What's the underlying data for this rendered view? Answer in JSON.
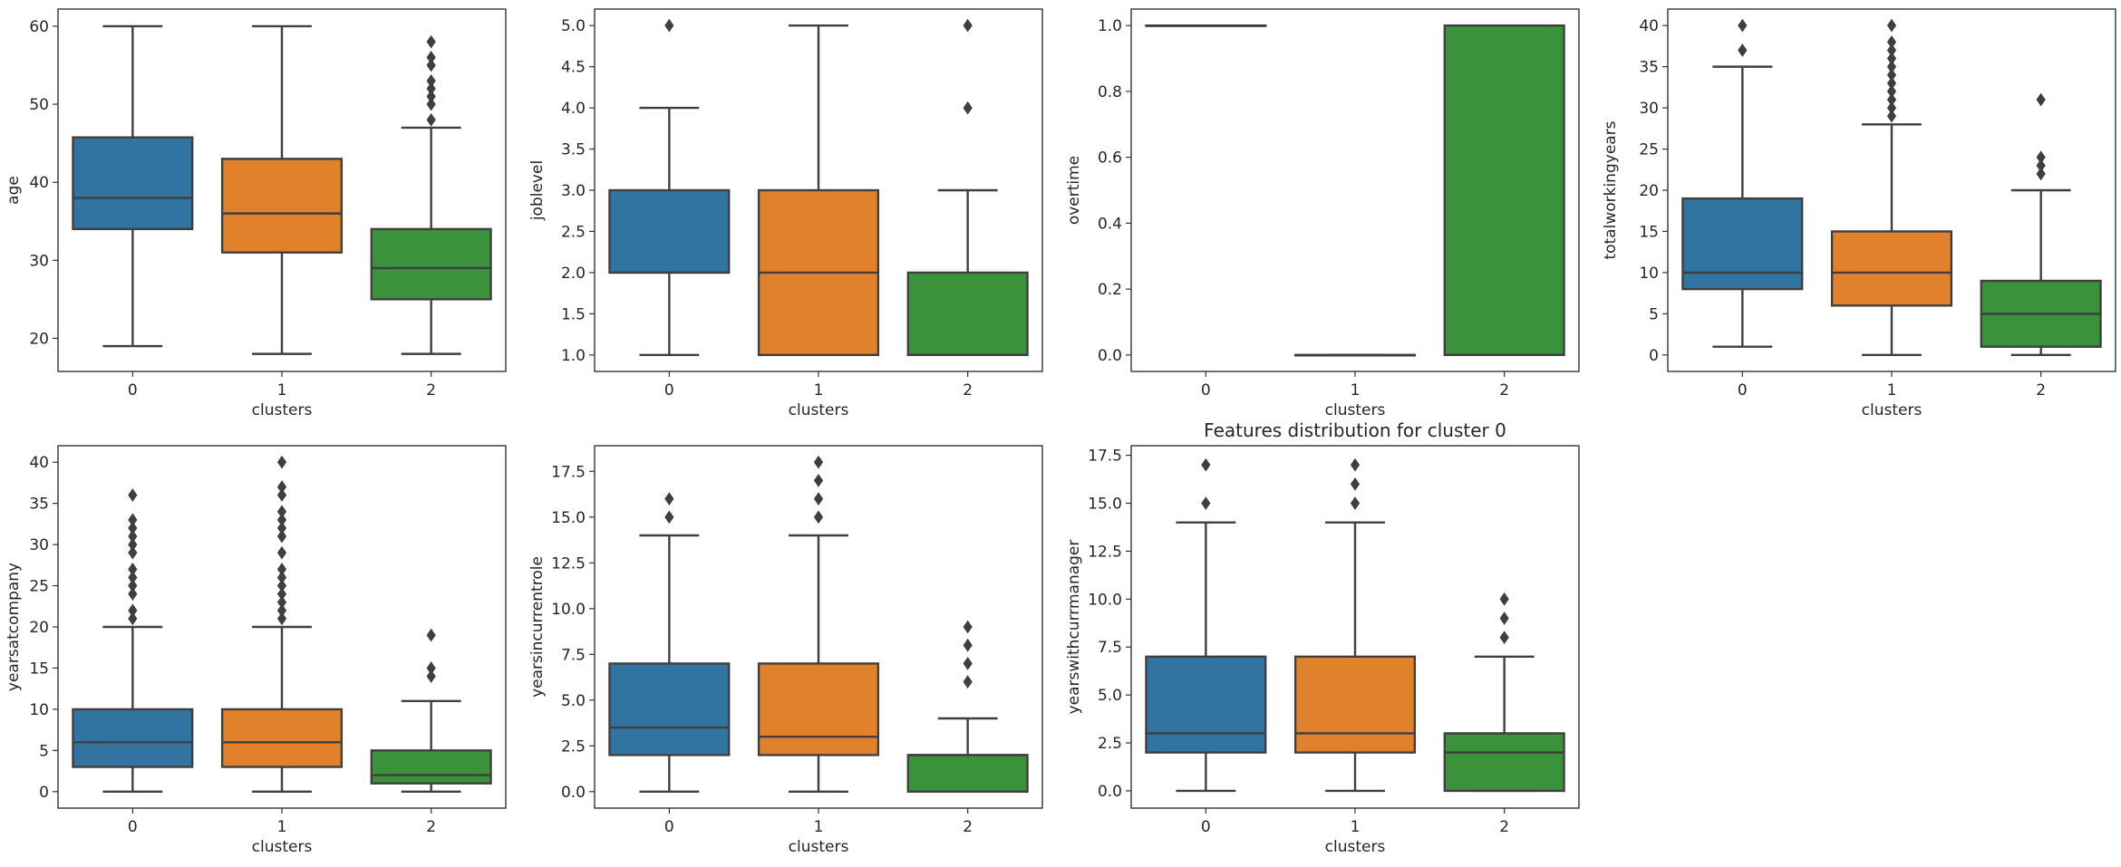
{
  "figure": {
    "suptitle": "Features distribution for cluster 0"
  },
  "chart_data": [
    {
      "type": "box",
      "title": "",
      "xlabel": "clusters",
      "ylabel": "age",
      "categories": [
        "0",
        "1",
        "2"
      ],
      "colors": [
        "#3274a1",
        "#e1812c",
        "#3a923a"
      ],
      "ylim": [
        15.75,
        62.2
      ],
      "yticks": [
        20,
        30,
        40,
        50,
        60
      ],
      "ytick_labels": [
        "20",
        "30",
        "40",
        "50",
        "60"
      ],
      "boxes": [
        {
          "q1": 34,
          "median": 38,
          "q3": 45.75,
          "whislo": 19,
          "whishi": 60,
          "fliers": []
        },
        {
          "q1": 31,
          "median": 36,
          "q3": 43,
          "whislo": 18,
          "whishi": 60,
          "fliers": []
        },
        {
          "q1": 25,
          "median": 29,
          "q3": 34,
          "whislo": 18,
          "whishi": 47,
          "fliers": [
            48,
            50,
            51,
            52,
            53,
            55,
            56,
            58
          ]
        }
      ]
    },
    {
      "type": "box",
      "title": "",
      "xlabel": "clusters",
      "ylabel": "joblevel",
      "categories": [
        "0",
        "1",
        "2"
      ],
      "colors": [
        "#3274a1",
        "#e1812c",
        "#3a923a"
      ],
      "ylim": [
        0.8,
        5.2
      ],
      "yticks": [
        1,
        1.5,
        2,
        2.5,
        3,
        3.5,
        4,
        4.5,
        5
      ],
      "ytick_labels": [
        "1.0",
        "1.5",
        "2.0",
        "2.5",
        "3.0",
        "3.5",
        "4.0",
        "4.5",
        "5.0"
      ],
      "boxes": [
        {
          "q1": 2,
          "median": 2,
          "q3": 3,
          "whislo": 1,
          "whishi": 4,
          "fliers": [
            5
          ]
        },
        {
          "q1": 1,
          "median": 2,
          "q3": 3,
          "whislo": 1,
          "whishi": 5,
          "fliers": []
        },
        {
          "q1": 1,
          "median": 1,
          "q3": 2,
          "whislo": 1,
          "whishi": 3,
          "fliers": [
            4,
            5
          ]
        }
      ]
    },
    {
      "type": "box",
      "title": "",
      "xlabel": "clusters",
      "ylabel": "overtime",
      "categories": [
        "0",
        "1",
        "2"
      ],
      "colors": [
        "#3274a1",
        "#e1812c",
        "#3a923a"
      ],
      "ylim": [
        -0.05,
        1.05
      ],
      "yticks": [
        0,
        0.2,
        0.4,
        0.6,
        0.8,
        1
      ],
      "ytick_labels": [
        "0.0",
        "0.2",
        "0.4",
        "0.6",
        "0.8",
        "1.0"
      ],
      "boxes": [
        {
          "q1": 1,
          "median": 1,
          "q3": 1,
          "whislo": 1,
          "whishi": 1,
          "fliers": []
        },
        {
          "q1": 0,
          "median": 0,
          "q3": 0,
          "whislo": 0,
          "whishi": 0,
          "fliers": []
        },
        {
          "q1": 0,
          "median": 0,
          "q3": 1,
          "whislo": 0,
          "whishi": 1,
          "fliers": []
        }
      ]
    },
    {
      "type": "box",
      "title": "",
      "xlabel": "clusters",
      "ylabel": "totalworkingyears",
      "categories": [
        "0",
        "1",
        "2"
      ],
      "colors": [
        "#3274a1",
        "#e1812c",
        "#3a923a"
      ],
      "ylim": [
        -2,
        42
      ],
      "yticks": [
        0,
        5,
        10,
        15,
        20,
        25,
        30,
        35,
        40
      ],
      "ytick_labels": [
        "0",
        "5",
        "10",
        "15",
        "20",
        "25",
        "30",
        "35",
        "40"
      ],
      "boxes": [
        {
          "q1": 8,
          "median": 10,
          "q3": 19,
          "whislo": 1,
          "whishi": 35,
          "fliers": [
            37,
            40
          ]
        },
        {
          "q1": 6,
          "median": 10,
          "q3": 15,
          "whislo": 0,
          "whishi": 28,
          "fliers": [
            29,
            30,
            31,
            32,
            33,
            34,
            35,
            36,
            37,
            38,
            40
          ]
        },
        {
          "q1": 1,
          "median": 5,
          "q3": 9,
          "whislo": 0,
          "whishi": 20,
          "fliers": [
            22,
            23,
            24,
            31
          ]
        }
      ]
    },
    {
      "type": "box",
      "title": "",
      "xlabel": "clusters",
      "ylabel": "yearsatcompany",
      "categories": [
        "0",
        "1",
        "2"
      ],
      "colors": [
        "#3274a1",
        "#e1812c",
        "#3a923a"
      ],
      "ylim": [
        -2,
        42
      ],
      "yticks": [
        0,
        5,
        10,
        15,
        20,
        25,
        30,
        35,
        40
      ],
      "ytick_labels": [
        "0",
        "5",
        "10",
        "15",
        "20",
        "25",
        "30",
        "35",
        "40"
      ],
      "boxes": [
        {
          "q1": 3,
          "median": 6,
          "q3": 10,
          "whislo": 0,
          "whishi": 20,
          "fliers": [
            21,
            22,
            24,
            25,
            26,
            27,
            29,
            30,
            31,
            32,
            33,
            36
          ]
        },
        {
          "q1": 3,
          "median": 6,
          "q3": 10,
          "whislo": 0,
          "whishi": 20,
          "fliers": [
            21,
            22,
            23,
            24,
            25,
            26,
            27,
            29,
            31,
            32,
            33,
            34,
            36,
            37,
            40
          ]
        },
        {
          "q1": 1,
          "median": 2,
          "q3": 5,
          "whislo": 0,
          "whishi": 11,
          "fliers": [
            14,
            15,
            19
          ]
        }
      ]
    },
    {
      "type": "box",
      "title": "",
      "xlabel": "clusters",
      "ylabel": "yearsincurrentrole",
      "categories": [
        "0",
        "1",
        "2"
      ],
      "colors": [
        "#3274a1",
        "#e1812c",
        "#3a923a"
      ],
      "ylim": [
        -0.9,
        18.9
      ],
      "yticks": [
        0,
        2.5,
        5,
        7.5,
        10,
        12.5,
        15,
        17.5
      ],
      "ytick_labels": [
        "0.0",
        "2.5",
        "5.0",
        "7.5",
        "10.0",
        "12.5",
        "15.0",
        "17.5"
      ],
      "boxes": [
        {
          "q1": 2,
          "median": 3.5,
          "q3": 7,
          "whislo": 0,
          "whishi": 14,
          "fliers": [
            15,
            16
          ]
        },
        {
          "q1": 2,
          "median": 3,
          "q3": 7,
          "whislo": 0,
          "whishi": 14,
          "fliers": [
            15,
            16,
            17,
            18
          ]
        },
        {
          "q1": 0,
          "median": 2,
          "q3": 2,
          "whislo": 0,
          "whishi": 4,
          "fliers": [
            6,
            7,
            8,
            9
          ]
        }
      ]
    },
    {
      "type": "box",
      "title": "Features distribution for cluster 0",
      "xlabel": "clusters",
      "ylabel": "yearswithcurrmanager",
      "categories": [
        "0",
        "1",
        "2"
      ],
      "colors": [
        "#3274a1",
        "#e1812c",
        "#3a923a"
      ],
      "ylim": [
        -0.9,
        18.0
      ],
      "yticks": [
        0,
        2.5,
        5,
        7.5,
        10,
        12.5,
        15,
        17.5
      ],
      "ytick_labels": [
        "0.0",
        "2.5",
        "5.0",
        "7.5",
        "10.0",
        "12.5",
        "15.0",
        "17.5"
      ],
      "boxes": [
        {
          "q1": 2,
          "median": 3,
          "q3": 7,
          "whislo": 0,
          "whishi": 14,
          "fliers": [
            15,
            17
          ]
        },
        {
          "q1": 2,
          "median": 3,
          "q3": 7,
          "whislo": 0,
          "whishi": 14,
          "fliers": [
            15,
            16,
            17
          ]
        },
        {
          "q1": 0,
          "median": 2,
          "q3": 3,
          "whislo": 0,
          "whishi": 7,
          "fliers": [
            8,
            9,
            10
          ]
        }
      ]
    }
  ]
}
